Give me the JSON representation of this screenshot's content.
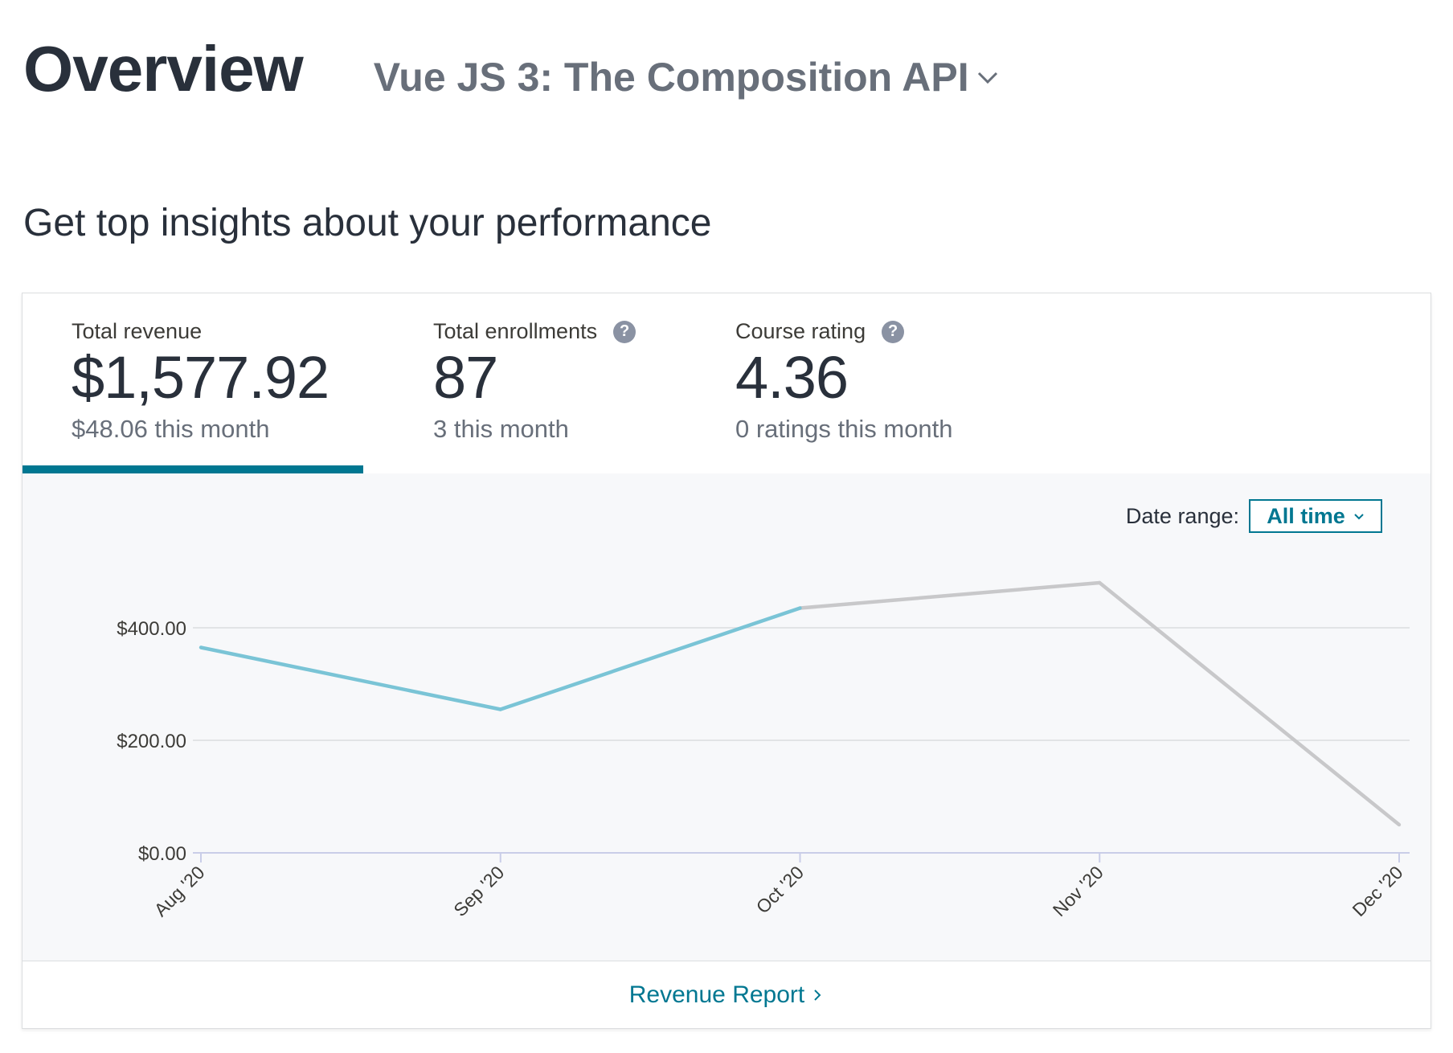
{
  "header": {
    "title": "Overview",
    "course": "Vue JS 3: The Composition API"
  },
  "subtitle": "Get top insights about your performance",
  "tabs": [
    {
      "label": "Total revenue",
      "value": "$1,577.92",
      "sub": "$48.06 this month",
      "active": true,
      "help": false
    },
    {
      "label": "Total enrollments",
      "value": "87",
      "sub": "3 this month",
      "active": false,
      "help": true
    },
    {
      "label": "Course rating",
      "value": "4.36",
      "sub": "0 ratings this month",
      "active": false,
      "help": true
    }
  ],
  "date_range": {
    "label": "Date range:",
    "value": "All time"
  },
  "footer": {
    "link": "Revenue Report"
  },
  "colors": {
    "accent": "#007791",
    "line_primary": "#7ac4d6",
    "line_secondary": "#c8c8ca"
  },
  "chart_data": {
    "type": "line",
    "categories": [
      "Aug '20",
      "Sep '20",
      "Oct '20",
      "Nov '20",
      "Dec '20"
    ],
    "values": [
      365,
      255,
      435,
      480,
      50
    ],
    "highlight_until_index": 2,
    "ylim": [
      0,
      480
    ],
    "yticks": [
      0,
      200,
      400
    ],
    "ytick_labels": [
      "$0.00",
      "$200.00",
      "$400.00"
    ],
    "grid": true,
    "title": "",
    "xlabel": "",
    "ylabel": ""
  }
}
